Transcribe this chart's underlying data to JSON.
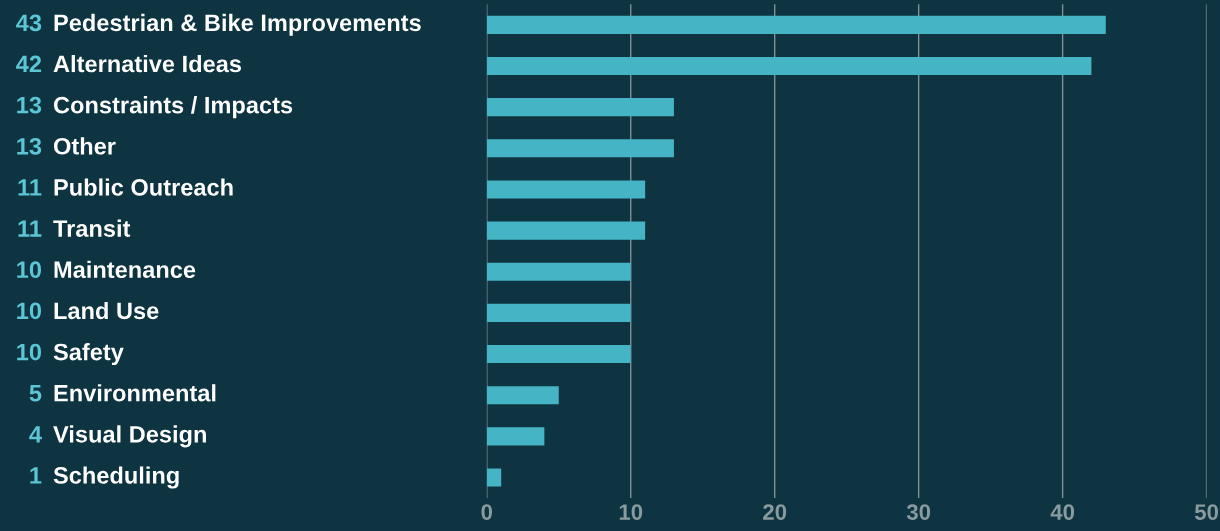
{
  "chart_data": {
    "type": "bar",
    "orientation": "horizontal",
    "categories": [
      "Pedestrian & Bike Improvements",
      "Alternative Ideas",
      "Constraints / Impacts",
      "Other",
      "Public Outreach",
      "Transit",
      "Maintenance",
      "Land Use",
      "Safety",
      "Environmental",
      "Visual Design",
      "Scheduling"
    ],
    "values": [
      43,
      42,
      13,
      13,
      11,
      11,
      10,
      10,
      10,
      5,
      4,
      1
    ],
    "color": "#45b4c4",
    "xlim": [
      0,
      50
    ],
    "xticks": [
      0,
      10,
      20,
      30,
      40,
      50
    ],
    "grid": "x",
    "data_labels": true
  }
}
